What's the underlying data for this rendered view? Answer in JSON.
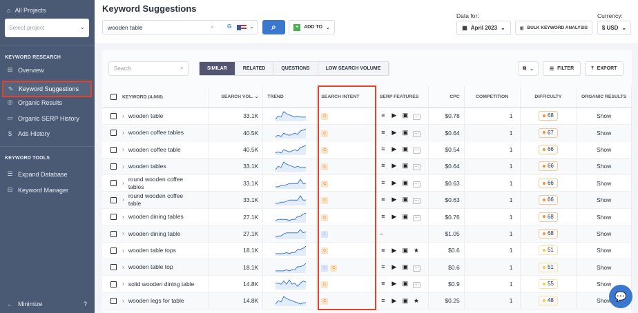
{
  "sidebar": {
    "all_projects": "All Projects",
    "select_placeholder": "Select project",
    "section1": "KEYWORD RESEARCH",
    "section2": "KEYWORD TOOLS",
    "items": [
      {
        "label": "Overview",
        "icon": "grid-icon",
        "g": "⊞"
      },
      {
        "label": "Keyword Suggestions",
        "icon": "pencil-icon",
        "g": "✎",
        "active": true
      },
      {
        "label": "Organic Results",
        "icon": "target-icon",
        "g": "◎"
      },
      {
        "label": "Organic SERP History",
        "icon": "archive-icon",
        "g": "▭"
      },
      {
        "label": "Ads History",
        "icon": "dollar-icon",
        "g": "$"
      }
    ],
    "tools": [
      {
        "label": "Expand Database",
        "icon": "database-icon",
        "g": "☰"
      },
      {
        "label": "Keyword Manager",
        "icon": "briefcase-icon",
        "g": "⊟"
      }
    ],
    "minimize": "Minimize"
  },
  "header": {
    "title": "Keyword Suggestions",
    "search_value": "wooden table",
    "add_to": "ADD TO",
    "data_for_label": "Data for:",
    "date": "April 2023",
    "bulk": "BULK KEYWORD ANALYSIS",
    "currency_label": "Currency:",
    "currency": "$ USD"
  },
  "toolbar": {
    "search_placeholder": "Search",
    "tabs": [
      "SIMILAR",
      "RELATED",
      "QUESTIONS",
      "LOW SEARCH VOLUME"
    ],
    "filter": "FILTER",
    "export": "EXPORT"
  },
  "table": {
    "headers": [
      "KEYWORD (4,066)",
      "SEARCH VOL.",
      "TREND",
      "SEARCH INTENT",
      "SERP FEATURES",
      "CPC",
      "COMPETITION",
      "DIFFICULTY",
      "ORGANIC RESULTS"
    ],
    "rows": [
      {
        "kw": "wooden table",
        "vol": "33.1K",
        "trend": [
          2,
          5,
          4,
          9,
          7,
          6,
          5,
          4,
          5,
          4,
          4,
          4
        ],
        "intent": [
          "C"
        ],
        "serp": [
          "more"
        ],
        "cpc": "$0.78",
        "comp": "1",
        "diff": "68",
        "org": "Show"
      },
      {
        "kw": "wooden coffee tables",
        "vol": "40.5K",
        "trend": [
          2,
          3,
          2,
          5,
          4,
          3,
          4,
          5,
          4,
          7,
          8,
          9
        ],
        "intent": [
          "C"
        ],
        "serp": [
          "more"
        ],
        "cpc": "$0.64",
        "comp": "1",
        "diff": "67",
        "org": "Show"
      },
      {
        "kw": "wooden coffee table",
        "vol": "40.5K",
        "trend": [
          2,
          3,
          2,
          5,
          4,
          3,
          4,
          5,
          4,
          7,
          8,
          9
        ],
        "intent": [
          "C"
        ],
        "serp": [
          "more"
        ],
        "cpc": "$0.54",
        "comp": "1",
        "diff": "66",
        "org": "Show"
      },
      {
        "kw": "wooden tables",
        "vol": "33.1K",
        "trend": [
          2,
          5,
          4,
          9,
          7,
          6,
          5,
          4,
          5,
          4,
          4,
          4
        ],
        "intent": [
          "C"
        ],
        "serp": [
          "more"
        ],
        "cpc": "$0.64",
        "comp": "1",
        "diff": "66",
        "org": "Show"
      },
      {
        "kw": "round wooden coffee tables",
        "vol": "33.1K",
        "trend": [
          2,
          2,
          3,
          3,
          4,
          5,
          5,
          5,
          5,
          9,
          5,
          5
        ],
        "intent": [
          "C"
        ],
        "serp": [
          "more"
        ],
        "cpc": "$0.63",
        "comp": "1",
        "diff": "66",
        "org": "Show"
      },
      {
        "kw": "round wooden coffee table",
        "vol": "33.1K",
        "trend": [
          2,
          2,
          3,
          3,
          4,
          5,
          5,
          5,
          5,
          9,
          5,
          5
        ],
        "intent": [
          "C"
        ],
        "serp": [
          "more"
        ],
        "cpc": "$0.63",
        "comp": "1",
        "diff": "66",
        "org": "Show"
      },
      {
        "kw": "wooden dining tables",
        "vol": "27.1K",
        "trend": [
          2,
          3,
          3,
          3,
          3,
          2,
          3,
          3,
          6,
          6,
          8,
          9
        ],
        "intent": [
          "C"
        ],
        "serp": [
          "more"
        ],
        "cpc": "$0.76",
        "comp": "1",
        "diff": "68",
        "org": "Show"
      },
      {
        "kw": "wooden dining table",
        "vol": "27.1K",
        "trend": [
          2,
          3,
          3,
          5,
          6,
          6,
          6,
          6,
          6,
          9,
          6,
          7
        ],
        "intent": [
          "I"
        ],
        "serp": [],
        "cpc": "$1.05",
        "comp": "1",
        "diff": "68",
        "org": "Show"
      },
      {
        "kw": "wooden table tops",
        "vol": "18.1K",
        "trend": [
          2,
          2,
          2,
          2,
          3,
          2,
          3,
          3,
          6,
          6,
          7,
          9
        ],
        "intent": [
          "C"
        ],
        "serp": [
          "star"
        ],
        "cpc": "$0.6",
        "comp": "1",
        "diff": "51",
        "org": "Show"
      },
      {
        "kw": "wooden table top",
        "vol": "18.1K",
        "trend": [
          2,
          2,
          2,
          2,
          3,
          2,
          3,
          3,
          6,
          6,
          7,
          9
        ],
        "intent": [
          "I",
          "C"
        ],
        "serp": [
          "more"
        ],
        "cpc": "$0.6",
        "comp": "1",
        "diff": "51",
        "org": "Show"
      },
      {
        "kw": "solid wooden dining table",
        "vol": "14.8K",
        "trend": [
          6,
          6,
          5,
          8,
          5,
          9,
          5,
          6,
          3,
          6,
          8,
          7
        ],
        "intent": [
          "C"
        ],
        "serp": [
          "more"
        ],
        "cpc": "$0.9",
        "comp": "1",
        "diff": "55",
        "org": "Show"
      },
      {
        "kw": "wooden legs for table",
        "vol": "14.8K",
        "trend": [
          2,
          5,
          4,
          9,
          7,
          6,
          5,
          4,
          3,
          2,
          3,
          3
        ],
        "intent": [
          "C"
        ],
        "serp": [
          "star"
        ],
        "cpc": "$0.25",
        "comp": "1",
        "diff": "48",
        "org": "Show"
      }
    ]
  },
  "colors": {
    "accent": "#3a78d0",
    "highlight": "#e8402a",
    "diff_high": "#f2913a",
    "diff_mid": "#f7c948",
    "trend": "#3a78d0"
  }
}
